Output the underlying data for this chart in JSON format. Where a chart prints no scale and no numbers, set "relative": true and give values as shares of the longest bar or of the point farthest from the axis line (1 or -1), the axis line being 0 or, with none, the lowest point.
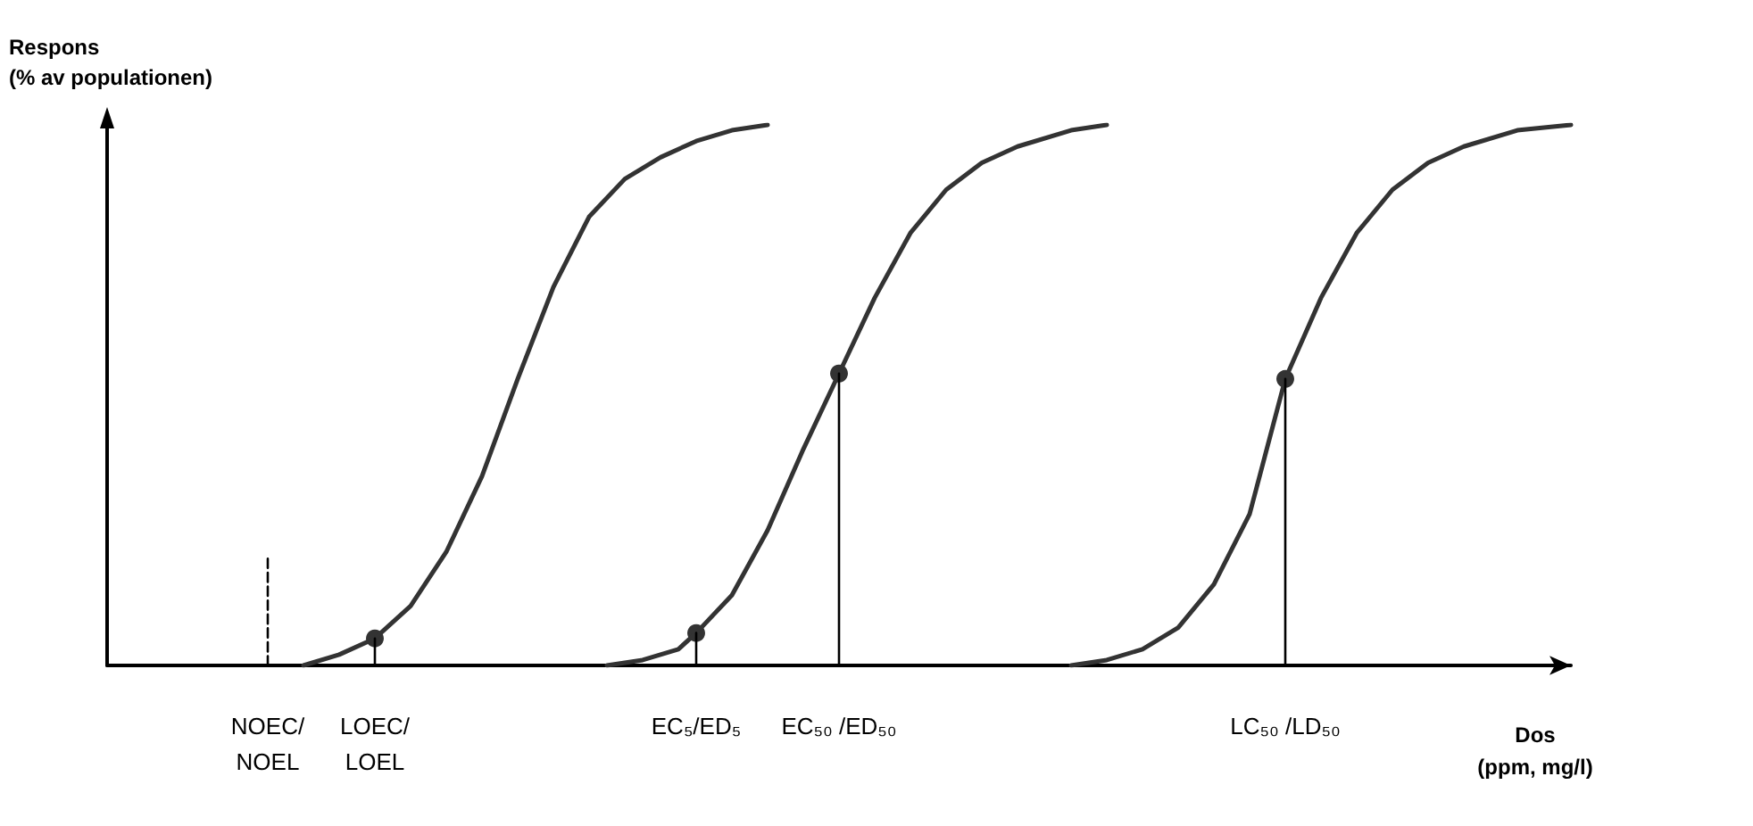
{
  "chart_data": {
    "type": "line",
    "relative": true,
    "ylabel": "Respons\n(% av populationen)",
    "xlabel": "Dos\n(ppm, mg/l)",
    "categories": [
      null,
      null,
      null,
      null,
      null,
      null,
      null,
      null,
      null,
      "NOEC/\nNOEL",
      null,
      null,
      null,
      null,
      null,
      "LOEC/\nLOEL",
      null,
      null,
      null,
      null,
      null,
      null,
      null,
      null,
      null,
      null,
      null,
      null,
      null,
      null,
      null,
      null,
      null,
      "EC₅/ED₅",
      null,
      null,
      null,
      null,
      null,
      null,
      null,
      "EC₅₀ /ED₅₀",
      null,
      null,
      null,
      null,
      null,
      null,
      null,
      null,
      null,
      null,
      null,
      null,
      null,
      null,
      null,
      null,
      null,
      null,
      null,
      null,
      null,
      null,
      null,
      null,
      "LC₅₀ /LD₅₀",
      null,
      null,
      null,
      null,
      null,
      null,
      null,
      null,
      null,
      null,
      null,
      null,
      null,
      null,
      null,
      null
    ],
    "series": [
      {
        "color": "#333333",
        "values": [
          null,
          null,
          null,
          null,
          null,
          null,
          null,
          null,
          null,
          null,
          null,
          0,
          null,
          0.02,
          null,
          0.05,
          null,
          0.11,
          null,
          0.21,
          null,
          0.35,
          null,
          0.53,
          null,
          0.7,
          null,
          0.83,
          null,
          0.9,
          null,
          0.94,
          null,
          0.97,
          null,
          0.99,
          null,
          1,
          null,
          null,
          null,
          null,
          null,
          null,
          null,
          null,
          null,
          null,
          null,
          null,
          null,
          null,
          null,
          null,
          null,
          null,
          null,
          null,
          null,
          null,
          null,
          null,
          null,
          null,
          null,
          null,
          null,
          null,
          null,
          null,
          null,
          null,
          null,
          null,
          null,
          null,
          null,
          null,
          null,
          null,
          null,
          null,
          null
        ]
      },
      {
        "color": "#333333",
        "values": [
          null,
          null,
          null,
          null,
          null,
          null,
          null,
          null,
          null,
          null,
          null,
          null,
          null,
          null,
          null,
          null,
          null,
          null,
          null,
          null,
          null,
          null,
          null,
          null,
          null,
          null,
          null,
          null,
          0,
          null,
          0.01,
          null,
          0.03,
          0.06,
          null,
          0.13,
          null,
          0.25,
          null,
          0.4,
          null,
          0.54,
          null,
          0.68,
          null,
          0.8,
          null,
          0.88,
          null,
          0.93,
          null,
          0.96,
          null,
          null,
          0.99,
          null,
          1,
          null,
          null,
          null,
          null,
          null,
          null,
          null,
          null,
          null,
          null,
          null,
          null,
          null,
          null,
          null,
          null,
          null,
          null,
          null,
          null,
          null,
          null,
          null,
          null,
          null,
          null
        ]
      },
      {
        "color": "#333333",
        "values": [
          null,
          null,
          null,
          null,
          null,
          null,
          null,
          null,
          null,
          null,
          null,
          null,
          null,
          null,
          null,
          null,
          null,
          null,
          null,
          null,
          null,
          null,
          null,
          null,
          null,
          null,
          null,
          null,
          null,
          null,
          null,
          null,
          null,
          null,
          null,
          null,
          null,
          null,
          null,
          null,
          null,
          null,
          null,
          null,
          null,
          null,
          null,
          null,
          null,
          null,
          null,
          null,
          null,
          null,
          0,
          null,
          0.01,
          null,
          0.03,
          null,
          0.07,
          null,
          0.15,
          null,
          0.28,
          null,
          0.53,
          null,
          0.68,
          null,
          0.8,
          null,
          0.88,
          null,
          0.93,
          null,
          0.96,
          null,
          null,
          0.99,
          null,
          null,
          1
        ]
      },
      {
        "color": "#000000",
        "x": [
          "NOEC/\nNOEL",
          "NOEC/\nNOEL"
        ],
        "values": [
          0,
          0.2
        ],
        "line_style": "dashed"
      },
      {
        "color": "#000000",
        "x": [
          "LOEC/\nLOEL",
          "LOEC/\nLOEL"
        ],
        "values": [
          0,
          0.05
        ]
      },
      {
        "color": "#000000",
        "x": [
          "EC₅/ED₅",
          "EC₅/ED₅"
        ],
        "values": [
          0,
          0.06
        ]
      },
      {
        "color": "#000000",
        "x": [
          "EC₅₀ /ED₅₀",
          "EC₅₀ /ED₅₀"
        ],
        "values": [
          0,
          0.54
        ]
      },
      {
        "color": "#000000",
        "x": [
          "LC₅₀ /LD₅₀",
          "LC₅₀ /LD₅₀"
        ],
        "values": [
          0,
          0.53
        ]
      },
      {
        "type": "scatter",
        "color": "#000000",
        "marker": "circle",
        "x": [
          "LOEC/\nLOEL",
          "EC₅/ED₅",
          "EC₅₀ /ED₅₀",
          "LC₅₀ /LD₅₀"
        ],
        "values": [
          0.05,
          0.06,
          0.54,
          0.53
        ]
      }
    ],
    "grid": false
  }
}
